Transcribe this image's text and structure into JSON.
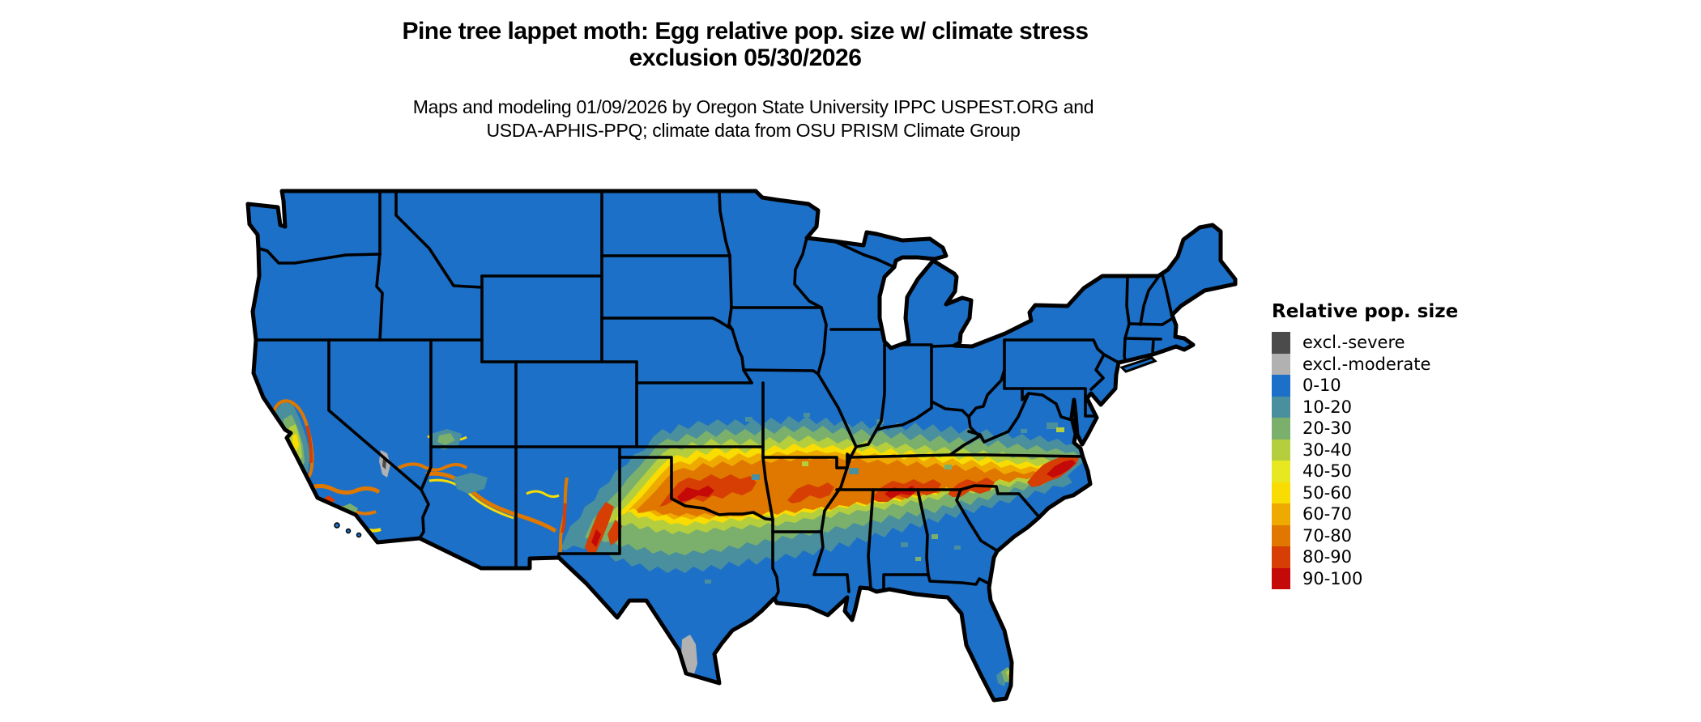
{
  "title": {
    "line1": "Pine tree lappet moth: Egg relative pop. size w/ climate stress",
    "line2": "exclusion 05/30/2026"
  },
  "subtitle": {
    "line1": "Maps and modeling 01/09/2026 by Oregon State University IPPC USPEST.ORG and",
    "line2": "USDA-APHIS-PPQ; climate data from OSU PRISM Climate Group"
  },
  "legend": {
    "title": "Relative pop. size",
    "entries": [
      {
        "label": "excl.-severe",
        "color": "#4b4b4b"
      },
      {
        "label": "excl.-moderate",
        "color": "#b1b1b1"
      },
      {
        "label": "0-10",
        "color": "#1c70c8"
      },
      {
        "label": "10-20",
        "color": "#4a8f9d"
      },
      {
        "label": "20-30",
        "color": "#7bb06c"
      },
      {
        "label": "30-40",
        "color": "#b4ce3e"
      },
      {
        "label": "40-50",
        "color": "#e8e822"
      },
      {
        "label": "50-60",
        "color": "#f8dc02"
      },
      {
        "label": "60-70",
        "color": "#eeaa00"
      },
      {
        "label": "70-80",
        "color": "#e07800"
      },
      {
        "label": "80-90",
        "color": "#d63e03"
      },
      {
        "label": "90-100",
        "color": "#c50808"
      }
    ]
  },
  "map": {
    "region": "Contiguous United States",
    "background": "#ffffff",
    "border_color": "#000000",
    "base_class": "0-10"
  }
}
